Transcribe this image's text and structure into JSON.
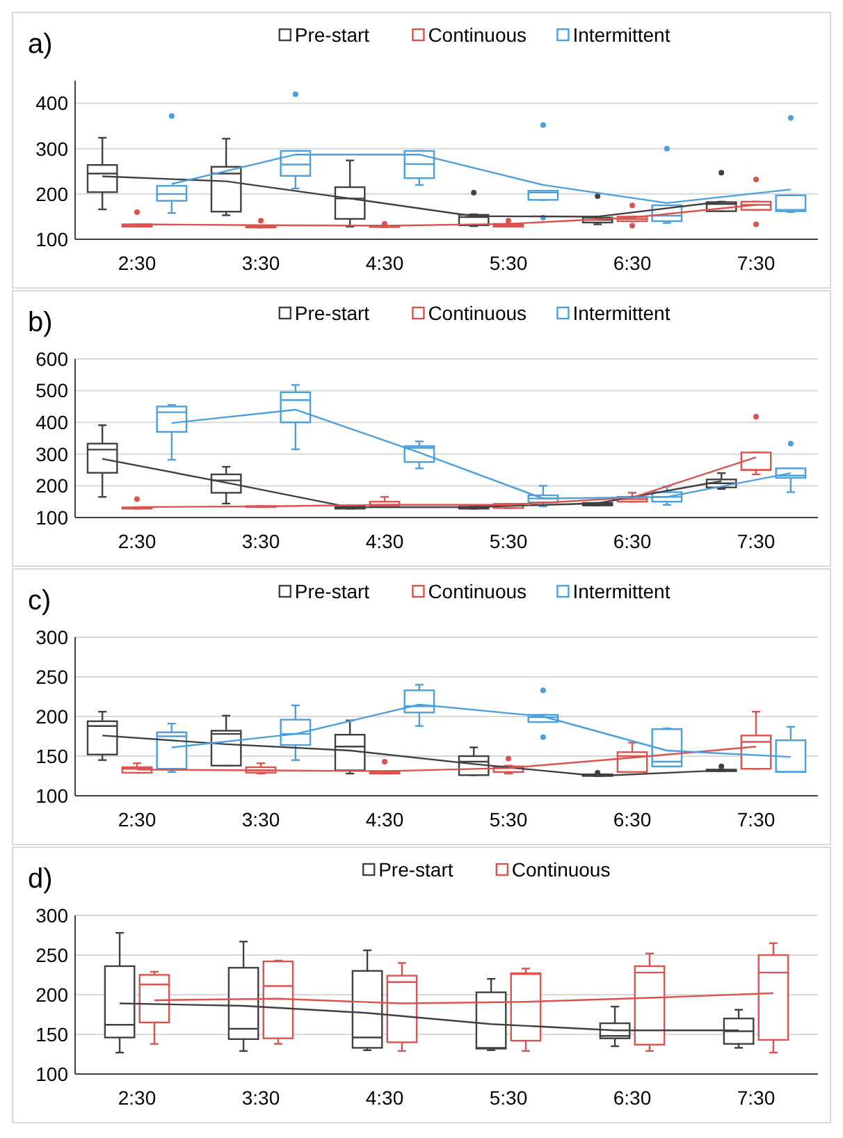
{
  "chart_data": [
    {
      "type": "box",
      "title": "a)",
      "legend": "top",
      "grid": "y",
      "ylim": [
        100,
        450
      ],
      "yticks": [
        100,
        200,
        300,
        400
      ],
      "categories": [
        "2:30",
        "3:30",
        "4:30",
        "5:30",
        "6:30",
        "7:30"
      ],
      "series": [
        {
          "name": "Pre-start",
          "color": "#404040",
          "boxes": [
            {
              "low": 166,
              "q1": 204,
              "median": 245,
              "q3": 264,
              "high": 324
            },
            {
              "low": 153,
              "q1": 161,
              "median": 245,
              "q3": 260,
              "high": 322
            },
            {
              "low": 128,
              "q1": 145,
              "median": 190,
              "q3": 215,
              "high": 274
            },
            {
              "low": 129,
              "q1": 131,
              "median": 149,
              "q3": 154,
              "high": 155,
              "outliers": [
                203
              ]
            },
            {
              "low": 133,
              "q1": 137,
              "median": 143,
              "q3": 148,
              "high": 150,
              "outliers": [
                195
              ]
            },
            {
              "low": 162,
              "q1": 162,
              "median": 178,
              "q3": 182,
              "high": 183,
              "outliers": [
                247
              ]
            }
          ]
        },
        {
          "name": "Continuous",
          "color": "#d9534f",
          "boxes": [
            {
              "low": 128,
              "q1": 128,
              "median": 130,
              "q3": 133,
              "high": 133,
              "outliers": [
                160
              ]
            },
            {
              "low": 126,
              "q1": 126,
              "median": 128,
              "q3": 130,
              "high": 130,
              "outliers": [
                141
              ]
            },
            {
              "low": 127,
              "q1": 127,
              "median": 128,
              "q3": 130,
              "high": 130,
              "outliers": [
                134
              ]
            },
            {
              "low": 128,
              "q1": 128,
              "median": 131,
              "q3": 134,
              "high": 134,
              "outliers": [
                141
              ]
            },
            {
              "low": 140,
              "q1": 140,
              "median": 145,
              "q3": 150,
              "high": 150,
              "outliers": [
                175,
                130
              ]
            },
            {
              "low": 165,
              "q1": 165,
              "median": 176,
              "q3": 183,
              "high": 183,
              "outliers": [
                232,
                133
              ]
            }
          ]
        },
        {
          "name": "Intermittent",
          "color": "#4a9fdc",
          "boxes": [
            {
              "low": 158,
              "q1": 185,
              "median": 200,
              "q3": 218,
              "high": 218,
              "outliers": [
                372
              ]
            },
            {
              "low": 212,
              "q1": 240,
              "median": 265,
              "q3": 295,
              "high": 295,
              "outliers": [
                420
              ]
            },
            {
              "low": 220,
              "q1": 235,
              "median": 266,
              "q3": 295,
              "high": 295
            },
            {
              "low": 187,
              "q1": 187,
              "median": 203,
              "q3": 207,
              "high": 207,
              "outliers": [
                352,
                148
              ]
            },
            {
              "low": 136,
              "q1": 140,
              "median": 152,
              "q3": 175,
              "high": 175,
              "outliers": [
                300
              ]
            },
            {
              "low": 160,
              "q1": 162,
              "median": 165,
              "q3": 197,
              "high": 197,
              "outliers": [
                368
              ]
            }
          ]
        },
        {
          "type": "line",
          "color": "#404040",
          "values": [
            239,
            228,
            190,
            151,
            150,
            183
          ]
        },
        {
          "type": "line",
          "color": "#d9534f",
          "values": [
            133,
            131,
            130,
            134,
            148,
            176
          ]
        },
        {
          "type": "line",
          "color": "#4a9fdc",
          "values": [
            222,
            287,
            287,
            220,
            180,
            210
          ]
        }
      ]
    },
    {
      "type": "box",
      "title": "b)",
      "legend": "top",
      "grid": "y",
      "ylim": [
        100,
        600
      ],
      "yticks": [
        100,
        200,
        300,
        400,
        500,
        600
      ],
      "categories": [
        "2:30",
        "3:30",
        "4:30",
        "5:30",
        "6:30",
        "7:30"
      ],
      "series": [
        {
          "name": "Pre-start",
          "color": "#404040",
          "boxes": [
            {
              "low": 165,
              "q1": 241,
              "median": 314,
              "q3": 333,
              "high": 391
            },
            {
              "low": 144,
              "q1": 178,
              "median": 217,
              "q3": 236,
              "high": 260
            },
            {
              "low": 128,
              "q1": 128,
              "median": 131,
              "q3": 135,
              "high": 135
            },
            {
              "low": 128,
              "q1": 128,
              "median": 131,
              "q3": 134,
              "high": 134
            },
            {
              "low": 138,
              "q1": 138,
              "median": 142,
              "q3": 146,
              "high": 146
            },
            {
              "low": 190,
              "q1": 195,
              "median": 208,
              "q3": 220,
              "high": 240
            }
          ]
        },
        {
          "name": "Continuous",
          "color": "#d9534f",
          "boxes": [
            {
              "low": 128,
              "q1": 128,
              "median": 130,
              "q3": 132,
              "high": 132,
              "outliers": [
                158
              ]
            },
            {
              "low": 133,
              "q1": 133,
              "median": 134,
              "q3": 136,
              "high": 136
            },
            {
              "low": 135,
              "q1": 135,
              "median": 140,
              "q3": 150,
              "high": 165
            },
            {
              "low": 130,
              "q1": 130,
              "median": 138,
              "q3": 143,
              "high": 143
            },
            {
              "low": 150,
              "q1": 150,
              "median": 158,
              "q3": 165,
              "high": 178
            },
            {
              "low": 236,
              "q1": 250,
              "median": 250,
              "q3": 305,
              "high": 305,
              "outliers": [
                418
              ]
            }
          ]
        },
        {
          "name": "Intermittent",
          "color": "#4a9fdc",
          "boxes": [
            {
              "low": 282,
              "q1": 370,
              "median": 432,
              "q3": 450,
              "high": 455
            },
            {
              "low": 315,
              "q1": 400,
              "median": 470,
              "q3": 495,
              "high": 518
            },
            {
              "low": 255,
              "q1": 275,
              "median": 320,
              "q3": 325,
              "high": 340
            },
            {
              "low": 135,
              "q1": 148,
              "median": 160,
              "q3": 170,
              "high": 200
            },
            {
              "low": 140,
              "q1": 150,
              "median": 165,
              "q3": 180,
              "high": 198
            },
            {
              "low": 180,
              "q1": 225,
              "median": 232,
              "q3": 255,
              "high": 255,
              "outliers": [
                333
              ]
            }
          ]
        },
        {
          "type": "line",
          "color": "#404040",
          "values": [
            285,
            210,
            132,
            133,
            145,
            215
          ]
        },
        {
          "type": "line",
          "color": "#d9534f",
          "values": [
            133,
            135,
            140,
            140,
            163,
            290
          ]
        },
        {
          "type": "line",
          "color": "#4a9fdc",
          "values": [
            398,
            440,
            305,
            160,
            165,
            240
          ]
        }
      ]
    },
    {
      "type": "box",
      "title": "c)",
      "legend": "top",
      "grid": "y",
      "ylim": [
        100,
        300
      ],
      "yticks": [
        100,
        150,
        200,
        250,
        300
      ],
      "categories": [
        "2:30",
        "3:30",
        "4:30",
        "5:30",
        "6:30",
        "7:30"
      ],
      "series": [
        {
          "name": "Pre-start",
          "color": "#404040",
          "boxes": [
            {
              "low": 145,
              "q1": 152,
              "median": 188,
              "q3": 194,
              "high": 206
            },
            {
              "low": 138,
              "q1": 138,
              "median": 178,
              "q3": 182,
              "high": 201
            },
            {
              "low": 128,
              "q1": 132,
              "median": 162,
              "q3": 177,
              "high": 195
            },
            {
              "low": 126,
              "q1": 126,
              "median": 143,
              "q3": 150,
              "high": 161
            },
            {
              "low": 125,
              "q1": 125,
              "median": 126,
              "q3": 127,
              "high": 127,
              "outliers": [
                129
              ]
            },
            {
              "low": 131,
              "q1": 131,
              "median": 132,
              "q3": 133,
              "high": 133,
              "outliers": [
                137
              ]
            }
          ]
        },
        {
          "name": "Continuous",
          "color": "#d9534f",
          "boxes": [
            {
              "low": 129,
              "q1": 129,
              "median": 134,
              "q3": 136,
              "high": 141
            },
            {
              "low": 128,
              "q1": 129,
              "median": 132,
              "q3": 136,
              "high": 141
            },
            {
              "low": 128,
              "q1": 128,
              "median": 130,
              "q3": 131,
              "high": 131,
              "outliers": [
                143
              ]
            },
            {
              "low": 128,
              "q1": 130,
              "median": 135,
              "q3": 137,
              "high": 138,
              "outliers": [
                147
              ]
            },
            {
              "low": 130,
              "q1": 130,
              "median": 150,
              "q3": 155,
              "high": 167
            },
            {
              "low": 134,
              "q1": 134,
              "median": 168,
              "q3": 176,
              "high": 206
            }
          ]
        },
        {
          "name": "Intermittent",
          "color": "#4a9fdc",
          "boxes": [
            {
              "low": 130,
              "q1": 134,
              "median": 175,
              "q3": 180,
              "high": 191
            },
            {
              "low": 145,
              "q1": 164,
              "median": 178,
              "q3": 196,
              "high": 214
            },
            {
              "low": 188,
              "q1": 205,
              "median": 213,
              "q3": 233,
              "high": 240
            },
            {
              "low": 193,
              "q1": 193,
              "median": 199,
              "q3": 202,
              "high": 202,
              "outliers": [
                233,
                174
              ]
            },
            {
              "low": 137,
              "q1": 137,
              "median": 143,
              "q3": 184,
              "high": 185
            },
            {
              "low": 130,
              "q1": 130,
              "median": 130,
              "q3": 170,
              "high": 187
            }
          ]
        },
        {
          "type": "line",
          "color": "#404040",
          "values": [
            176,
            165,
            157,
            140,
            125,
            132
          ]
        },
        {
          "type": "line",
          "color": "#d9534f",
          "values": [
            133,
            132,
            131,
            135,
            148,
            162
          ]
        },
        {
          "type": "line",
          "color": "#4a9fdc",
          "values": [
            161,
            178,
            215,
            200,
            157,
            149
          ]
        }
      ]
    },
    {
      "type": "box",
      "title": "d)",
      "legend": "top",
      "grid": "y",
      "ylim": [
        100,
        300
      ],
      "yticks": [
        100,
        150,
        200,
        250,
        300
      ],
      "categories": [
        "2:30",
        "3:30",
        "4:30",
        "5:30",
        "6:30",
        "7:30"
      ],
      "series": [
        {
          "name": "Pre-start",
          "color": "#404040",
          "boxes": [
            {
              "low": 127,
              "q1": 146,
              "median": 162,
              "q3": 236,
              "high": 278
            },
            {
              "low": 129,
              "q1": 144,
              "median": 157,
              "q3": 234,
              "high": 267
            },
            {
              "low": 130,
              "q1": 133,
              "median": 146,
              "q3": 230,
              "high": 256
            },
            {
              "low": 130,
              "q1": 132,
              "median": 133,
              "q3": 203,
              "high": 220
            },
            {
              "low": 135,
              "q1": 145,
              "median": 148,
              "q3": 164,
              "high": 185
            },
            {
              "low": 133,
              "q1": 138,
              "median": 154,
              "q3": 170,
              "high": 181
            }
          ]
        },
        {
          "name": "Continuous",
          "color": "#d9534f",
          "boxes": [
            {
              "low": 138,
              "q1": 165,
              "median": 213,
              "q3": 225,
              "high": 229
            },
            {
              "low": 138,
              "q1": 145,
              "median": 211,
              "q3": 242,
              "high": 243
            },
            {
              "low": 129,
              "q1": 140,
              "median": 216,
              "q3": 224,
              "high": 240
            },
            {
              "low": 129,
              "q1": 142,
              "median": 226,
              "q3": 227,
              "high": 233
            },
            {
              "low": 129,
              "q1": 137,
              "median": 228,
              "q3": 236,
              "high": 252
            },
            {
              "low": 127,
              "q1": 143,
              "median": 228,
              "q3": 250,
              "high": 265
            }
          ]
        },
        {
          "type": "line",
          "color": "#404040",
          "values": [
            189,
            186,
            177,
            163,
            155,
            155
          ]
        },
        {
          "type": "line",
          "color": "#d9534f",
          "values": [
            193,
            195,
            189,
            191,
            196,
            202
          ]
        }
      ]
    }
  ]
}
